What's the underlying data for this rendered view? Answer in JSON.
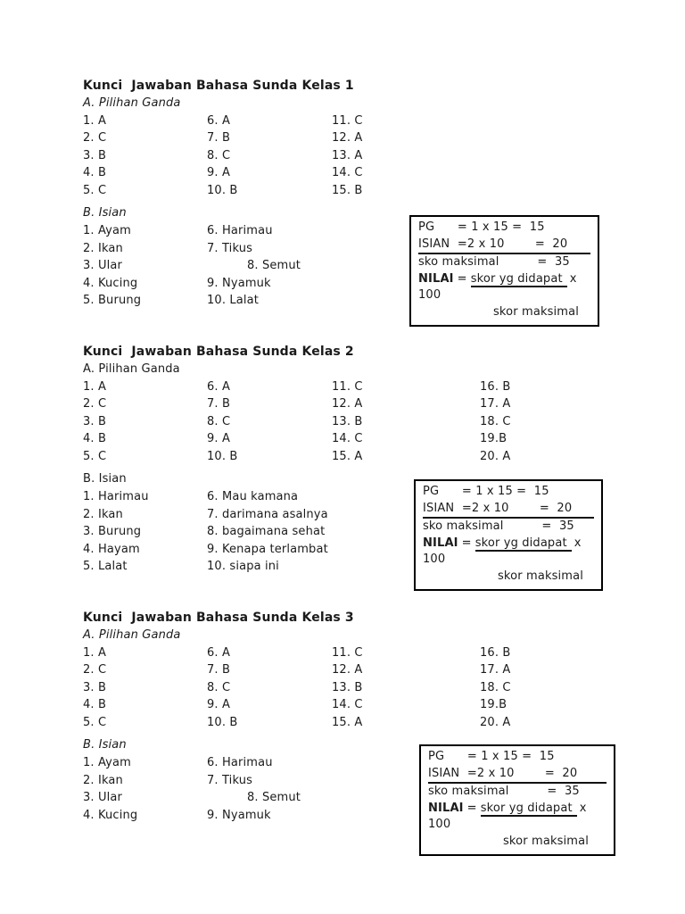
{
  "page": {
    "background": "#ffffff",
    "text_color": "#1b1b1b"
  },
  "sections": [
    {
      "title": "Kunci  Jawaban Bahasa Sunda Kelas 1",
      "part_a_label": "A. Pilihan Ganda",
      "part_a_columns": [
        [
          "1. A",
          "2. C",
          "3. B",
          "4. B",
          "5. C"
        ],
        [
          "6. A",
          "7. B",
          "8. C",
          "9. A",
          "10. B"
        ],
        [
          "11. C",
          "12. A",
          "13. A",
          "14. C",
          "15. B"
        ],
        []
      ],
      "part_b_label": "B. Isian",
      "part_b_left": [
        "1. Ayam",
        "2. Ikan",
        "3. Ular",
        "4. Kucing",
        "5. Burung"
      ],
      "part_b_right": [
        "6. Harimau",
        "7. Tikus",
        "8. Semut",
        "9. Nyamuk",
        "10. Lalat"
      ]
    },
    {
      "title": "Kunci  Jawaban Bahasa Sunda Kelas 2",
      "part_a_label": "A. Pilihan Ganda",
      "part_a_columns": [
        [
          "1. A",
          "2. C",
          "3. B",
          "4. B",
          "5. C"
        ],
        [
          "6. A",
          "7. B",
          "8. C",
          "9. A",
          "10. B"
        ],
        [
          "11. C",
          "12. A",
          "13. B",
          "14. C",
          "15. A"
        ],
        [
          "16. B",
          "17. A",
          "18. C",
          "19.B",
          "20. A"
        ]
      ],
      "part_b_label": "B. Isian",
      "part_b_left": [
        "1. Harimau",
        "2. Ikan",
        "3. Burung",
        "4. Hayam",
        "5. Lalat"
      ],
      "part_b_right": [
        "6. Mau kamana",
        "7. darimana asalnya",
        "8. bagaimana sehat",
        "9. Kenapa terlambat",
        "10. siapa ini"
      ]
    },
    {
      "title": "Kunci  Jawaban Bahasa Sunda Kelas 3",
      "part_a_label": "A. Pilihan Ganda",
      "part_a_columns": [
        [
          "1. A",
          "2. C",
          "3. B",
          "4. B",
          "5. C"
        ],
        [
          "6. A",
          "7. B",
          "8. C",
          "9. A",
          "10. B"
        ],
        [
          "11. C",
          "12. A",
          "13. B",
          "14. C",
          "15. A"
        ],
        [
          "16. B",
          "17. A",
          "18. C",
          "19.B",
          "20. A"
        ]
      ],
      "part_b_label": "B. Isian",
      "part_b_left": [
        "1. Ayam",
        "2. Ikan",
        "3. Ular",
        "4. Kucing"
      ],
      "part_b_right": [
        "6. Harimau",
        "7. Tikus",
        "8. Semut",
        "9. Nyamuk"
      ]
    }
  ],
  "score_box": {
    "line_pg": "PG      = 1 x 15 =  15",
    "line_isian": "ISIAN  =2 x 10        =  20",
    "line_max": "sko maksimal          =  35",
    "nilai_label": "NILAI",
    "nilai_equals": "=",
    "nilai_numerator": "skor yg didapat",
    "nilai_multiplier": "x",
    "nilai_factor": "100",
    "nilai_denominator": "skor maksimal"
  }
}
